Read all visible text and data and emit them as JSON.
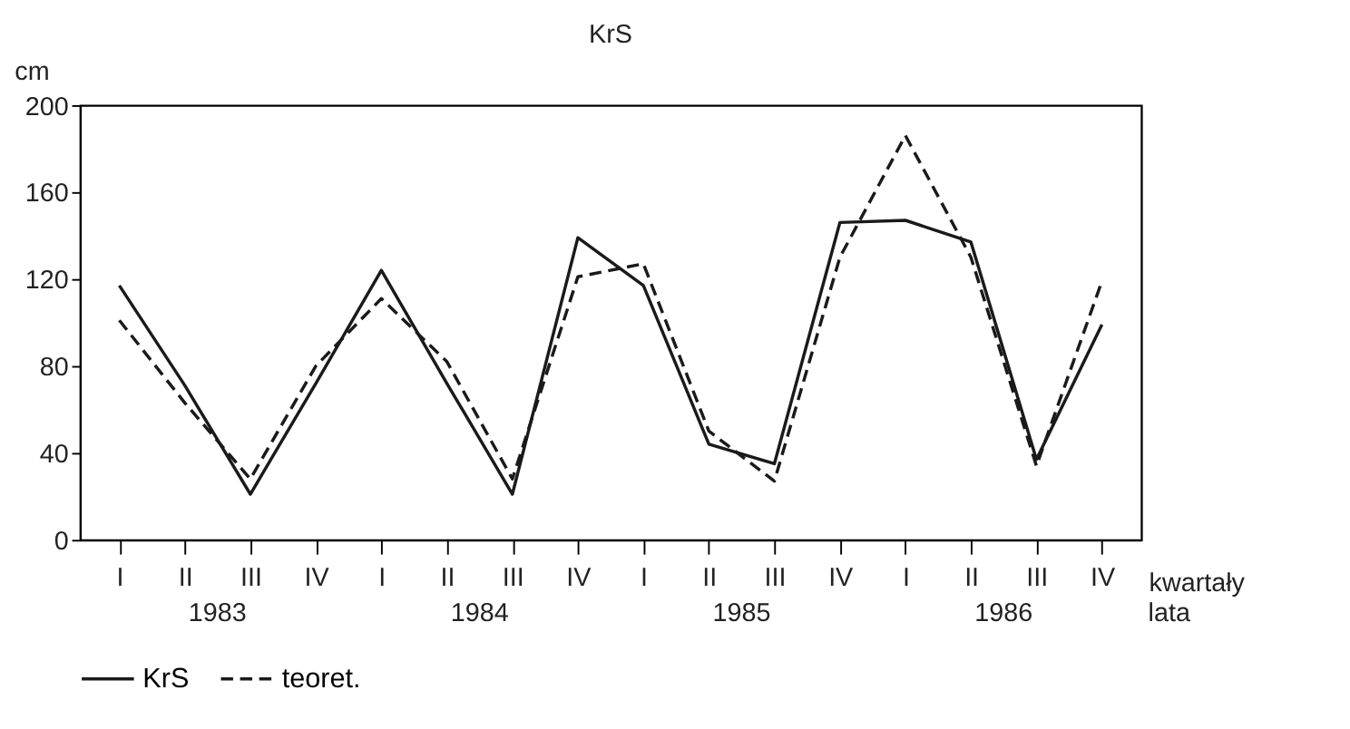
{
  "chart_data": {
    "type": "line",
    "title": "KrS",
    "ylabel": "cm",
    "xlabel": "kwartały",
    "categories": [
      "I",
      "II",
      "III",
      "IV",
      "I",
      "II",
      "III",
      "IV",
      "I",
      "II",
      "III",
      "IV",
      "I",
      "II",
      "III",
      "IV"
    ],
    "ylim": [
      0,
      200
    ],
    "yticks": [
      0,
      40,
      80,
      120,
      160,
      200
    ],
    "grid": false,
    "legend": "bottom",
    "marker": "none",
    "series": [
      {
        "name": "KrS",
        "color": "#1a1a1a",
        "line_style": "solid",
        "values": [
          117,
          71,
          21,
          72,
          124,
          72,
          21,
          139,
          117,
          44,
          35,
          146,
          147,
          137,
          37,
          99
        ]
      },
      {
        "name": "teoret.",
        "color": "#1a1a1a",
        "line_style": "dashed",
        "values": [
          101,
          63,
          28,
          80,
          111,
          82,
          28,
          121,
          127,
          50,
          27,
          130,
          186,
          130,
          34,
          119
        ]
      }
    ],
    "annotations": [
      "1983",
      "1984",
      "1985",
      "1986",
      "lata"
    ]
  }
}
